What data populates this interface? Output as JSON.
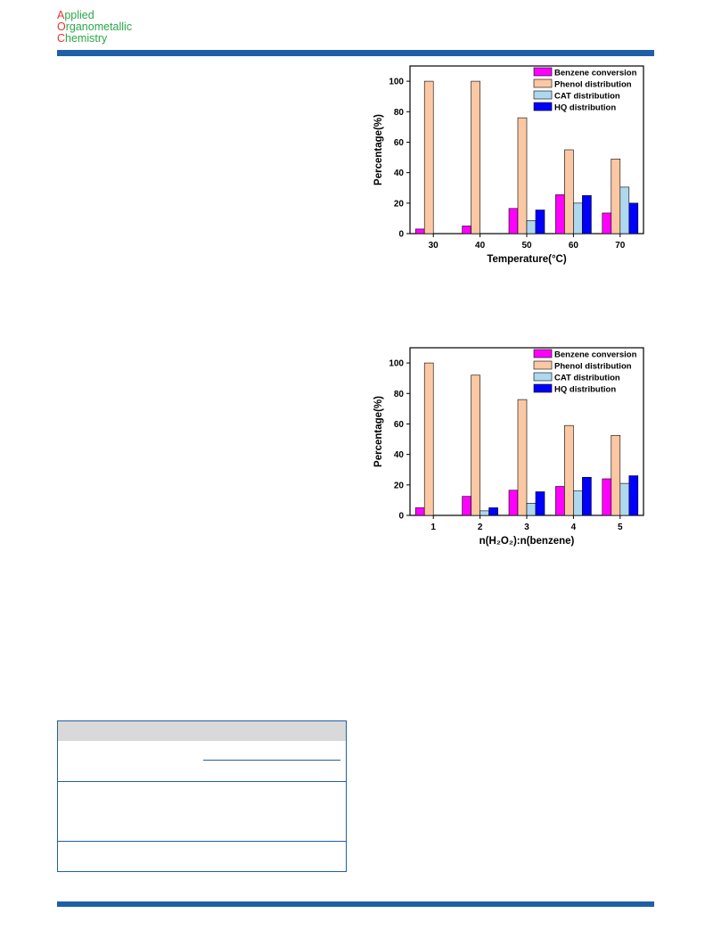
{
  "journal": {
    "line1_cap": "A",
    "line1_rest": "pplied",
    "line2_cap": "O",
    "line2_rest": "rganometallic",
    "line3_cap": "C",
    "line3_rest": "hemistry"
  },
  "chart_data": [
    {
      "type": "bar",
      "title": "",
      "xlabel": "Temperature(°C)",
      "ylabel": "Percentage(%)",
      "categories": [
        "30",
        "40",
        "50",
        "60",
        "70"
      ],
      "ylim": [
        0,
        110
      ],
      "yticks": [
        0,
        20,
        40,
        60,
        80,
        100
      ],
      "legend_position": "top-right",
      "series": [
        {
          "name": "Benzene conversion",
          "color": "#ff00ff",
          "values": [
            3,
            5,
            16.5,
            25.5,
            13.5
          ]
        },
        {
          "name": "Phenol distribution",
          "color": "#fcc8a4",
          "values": [
            100,
            100,
            76,
            55,
            49
          ]
        },
        {
          "name": "CAT distribution",
          "color": "#aed8ef",
          "values": [
            0,
            0,
            8.5,
            20,
            30.5
          ]
        },
        {
          "name": "HQ distribution",
          "color": "#0000ff",
          "values": [
            0,
            0,
            15.5,
            25,
            20
          ]
        }
      ]
    },
    {
      "type": "bar",
      "title": "",
      "xlabel": "n(H₂O₂):n(benzene)",
      "ylabel": "Percentage(%)",
      "categories": [
        "1",
        "2",
        "3",
        "4",
        "5"
      ],
      "ylim": [
        0,
        110
      ],
      "yticks": [
        0,
        20,
        40,
        60,
        80,
        100
      ],
      "legend_position": "top-right",
      "series": [
        {
          "name": "Benzene conversion",
          "color": "#ff00ff",
          "values": [
            5,
            12.5,
            16.5,
            19,
            24
          ]
        },
        {
          "name": "Phenol distribution",
          "color": "#fcc8a4",
          "values": [
            100,
            92,
            76,
            59,
            52.5
          ]
        },
        {
          "name": "CAT distribution",
          "color": "#aed8ef",
          "values": [
            0,
            3,
            8,
            16,
            21
          ]
        },
        {
          "name": "HQ distribution",
          "color": "#0000ff",
          "values": [
            0,
            5,
            15.5,
            25,
            26
          ]
        }
      ]
    }
  ]
}
